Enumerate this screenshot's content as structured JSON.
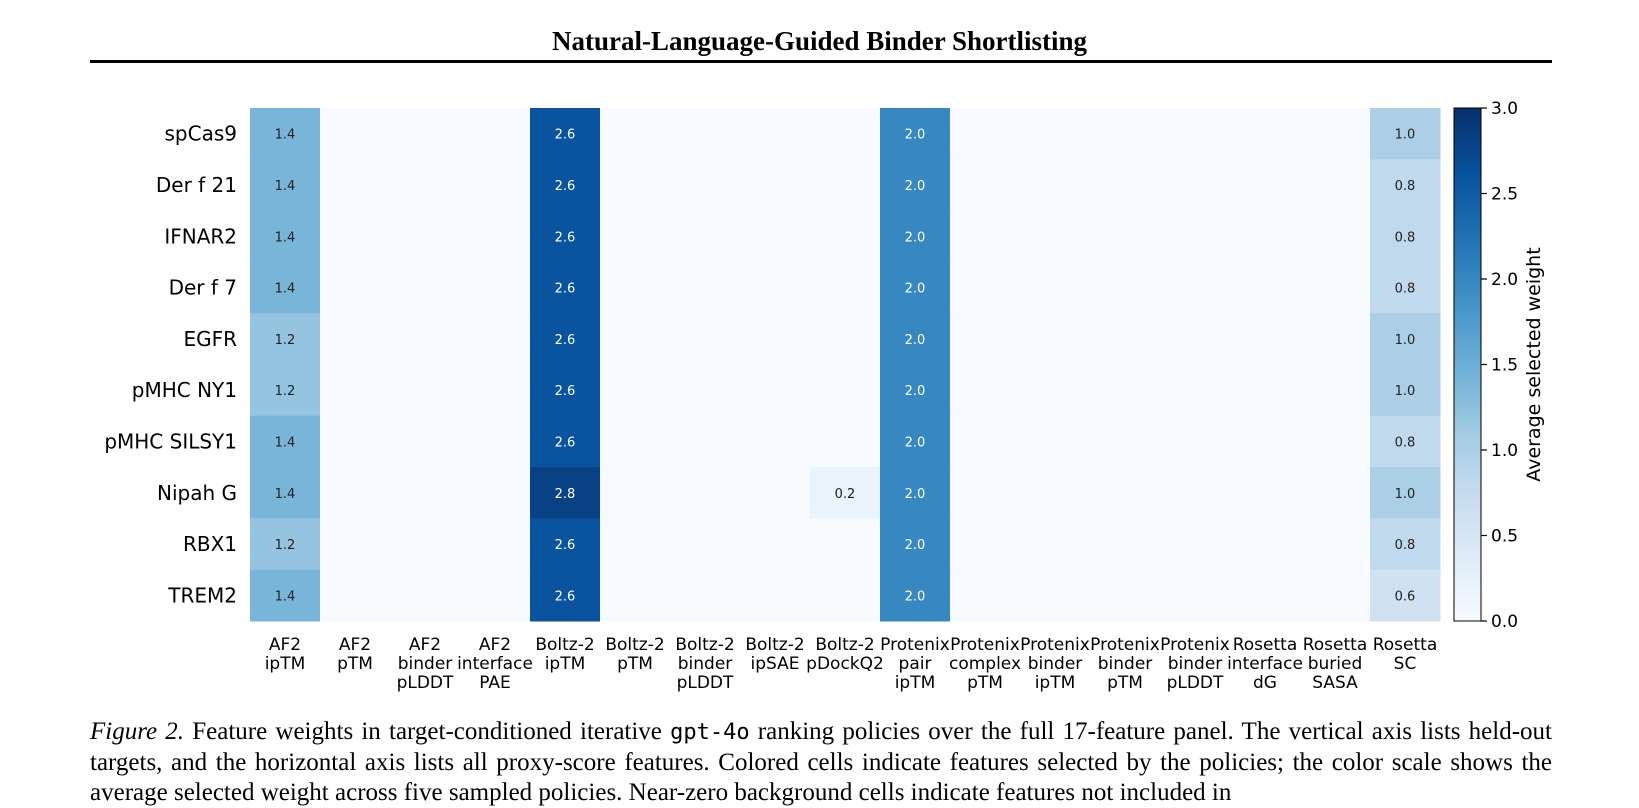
{
  "header": {
    "title": "Natural-Language-Guided Binder Shortlisting"
  },
  "chart_data": {
    "type": "heatmap",
    "rows": [
      "spCas9",
      "Der f 21",
      "IFNAR2",
      "Der f 7",
      "EGFR",
      "pMHC NY1",
      "pMHC SILSY1",
      "Nipah G",
      "RBX1",
      "TREM2"
    ],
    "columns": [
      [
        "AF2",
        "ipTM"
      ],
      [
        "AF2",
        "pTM"
      ],
      [
        "AF2",
        "binder",
        "pLDDT"
      ],
      [
        "AF2",
        "interface",
        "PAE"
      ],
      [
        "Boltz-2",
        "ipTM"
      ],
      [
        "Boltz-2",
        "pTM"
      ],
      [
        "Boltz-2",
        "binder",
        "pLDDT"
      ],
      [
        "Boltz-2",
        "ipSAE"
      ],
      [
        "Boltz-2",
        "pDockQ2"
      ],
      [
        "Protenix",
        "pair",
        "ipTM"
      ],
      [
        "Protenix",
        "complex",
        "pTM"
      ],
      [
        "Protenix",
        "binder",
        "ipTM"
      ],
      [
        "Protenix",
        "binder",
        "pTM"
      ],
      [
        "Protenix",
        "binder",
        "pLDDT"
      ],
      [
        "Rosetta",
        "interface",
        "dG"
      ],
      [
        "Rosetta",
        "buried",
        "SASA"
      ],
      [
        "Rosetta",
        "SC"
      ]
    ],
    "values": [
      [
        1.4,
        0,
        0,
        0,
        2.6,
        0,
        0,
        0,
        0,
        2.0,
        0,
        0,
        0,
        0,
        0,
        0,
        1.0
      ],
      [
        1.4,
        0,
        0,
        0,
        2.6,
        0,
        0,
        0,
        0,
        2.0,
        0,
        0,
        0,
        0,
        0,
        0,
        0.8
      ],
      [
        1.4,
        0,
        0,
        0,
        2.6,
        0,
        0,
        0,
        0,
        2.0,
        0,
        0,
        0,
        0,
        0,
        0,
        0.8
      ],
      [
        1.4,
        0,
        0,
        0,
        2.6,
        0,
        0,
        0,
        0,
        2.0,
        0,
        0,
        0,
        0,
        0,
        0,
        0.8
      ],
      [
        1.2,
        0,
        0,
        0,
        2.6,
        0,
        0,
        0,
        0,
        2.0,
        0,
        0,
        0,
        0,
        0,
        0,
        1.0
      ],
      [
        1.2,
        0,
        0,
        0,
        2.6,
        0,
        0,
        0,
        0,
        2.0,
        0,
        0,
        0,
        0,
        0,
        0,
        1.0
      ],
      [
        1.4,
        0,
        0,
        0,
        2.6,
        0,
        0,
        0,
        0,
        2.0,
        0,
        0,
        0,
        0,
        0,
        0,
        0.8
      ],
      [
        1.4,
        0,
        0,
        0,
        2.8,
        0,
        0,
        0,
        0.2,
        2.0,
        0,
        0,
        0,
        0,
        0,
        0,
        1.0
      ],
      [
        1.2,
        0,
        0,
        0,
        2.6,
        0,
        0,
        0,
        0,
        2.0,
        0,
        0,
        0,
        0,
        0,
        0,
        0.8
      ],
      [
        1.4,
        0,
        0,
        0,
        2.6,
        0,
        0,
        0,
        0,
        2.0,
        0,
        0,
        0,
        0,
        0,
        0,
        0.6
      ]
    ],
    "value_range": [
      0.0,
      3.0
    ],
    "colormap": "Blues",
    "colorbar": {
      "label": "Average selected weight",
      "ticks": [
        "0.0",
        "0.5",
        "1.0",
        "1.5",
        "2.0",
        "2.5",
        "3.0"
      ]
    }
  },
  "caption": {
    "label": "Figure 2.",
    "text_before_code": " Feature weights in target-conditioned iterative ",
    "code": "gpt-4o",
    "text_after_code": " ranking policies over the full 17-feature panel. The vertical axis lists held-out targets, and the horizontal axis lists all proxy-score features. Colored cells indicate features selected by the policies; the color scale shows the average selected weight across five sampled policies. Near-zero background cells indicate features not included in"
  }
}
